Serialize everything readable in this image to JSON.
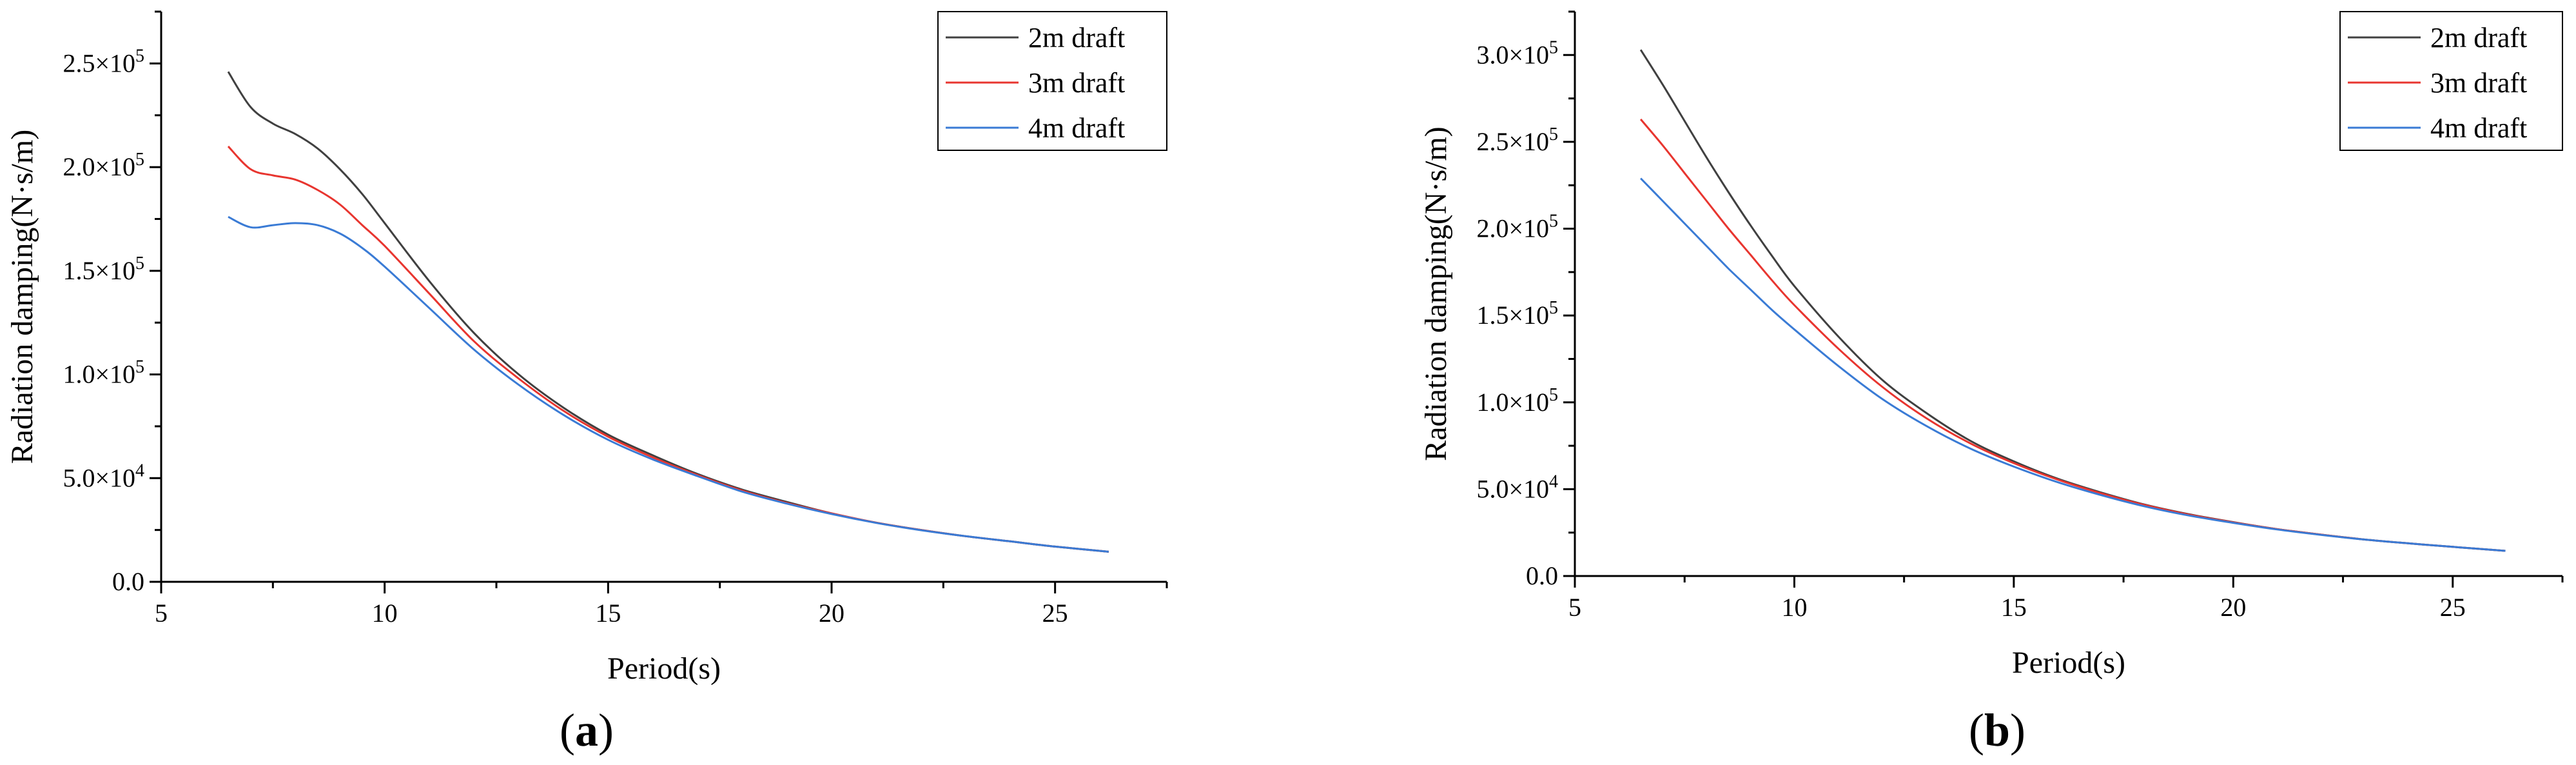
{
  "chart_data": [
    {
      "type": "line",
      "panel_label": "a",
      "xlabel": "Period(s)",
      "ylabel": "Radiation damping(N·s/m)",
      "xlim": [
        5,
        27.5
      ],
      "ylim": [
        0,
        275000
      ],
      "xticks": [
        5,
        10,
        15,
        20,
        25
      ],
      "xtick_labels": [
        "5",
        "10",
        "15",
        "20",
        "25"
      ],
      "yticks": [
        0,
        50000,
        100000,
        150000,
        200000,
        250000
      ],
      "ytick_labels": [
        {
          "mant": "0.0",
          "exp": ""
        },
        {
          "mant": "5.0×10",
          "exp": "4"
        },
        {
          "mant": "1.0×10",
          "exp": "5"
        },
        {
          "mant": "1.5×10",
          "exp": "5"
        },
        {
          "mant": "2.0×10",
          "exp": "5"
        },
        {
          "mant": "2.5×10",
          "exp": "5"
        }
      ],
      "legend": "top-right",
      "grid": false,
      "x": [
        6.5,
        7,
        7.5,
        8,
        8.5,
        9,
        9.5,
        10,
        11,
        12,
        13,
        14,
        15,
        16,
        17,
        18,
        19,
        20,
        21,
        22,
        23,
        24,
        25,
        26.2
      ],
      "series": [
        {
          "name": "2m draft",
          "color": "#404040",
          "values": [
            246000,
            229000,
            221000,
            216000,
            209000,
            199000,
            187000,
            173000,
            145000,
            120000,
            100000,
            84000,
            71000,
            61000,
            52000,
            44500,
            38500,
            33000,
            28500,
            25000,
            22000,
            19500,
            17000,
            14500
          ]
        },
        {
          "name": "3m draft",
          "color": "#e8352f",
          "values": [
            210000,
            199000,
            196000,
            194000,
            189000,
            182000,
            172000,
            162000,
            139000,
            116000,
            98000,
            82500,
            70000,
            60000,
            51500,
            44000,
            38000,
            33000,
            28500,
            25000,
            22000,
            19500,
            17000,
            14500
          ]
        },
        {
          "name": "4m draft",
          "color": "#3a7bd5",
          "values": [
            176000,
            171000,
            172000,
            173000,
            172000,
            168000,
            161000,
            152000,
            132000,
            112000,
            95000,
            80500,
            68500,
            59000,
            51000,
            43500,
            37700,
            32700,
            28400,
            24900,
            22000,
            19500,
            17000,
            14500
          ]
        }
      ]
    },
    {
      "type": "line",
      "panel_label": "b",
      "xlabel": "Period(s)",
      "ylabel": "Radiation damping(N·s/m)",
      "xlim": [
        5,
        27.5
      ],
      "ylim": [
        0,
        325000
      ],
      "xticks": [
        5,
        10,
        15,
        20,
        25
      ],
      "xtick_labels": [
        "5",
        "10",
        "15",
        "20",
        "25"
      ],
      "yticks": [
        0,
        50000,
        100000,
        150000,
        200000,
        250000,
        300000
      ],
      "ytick_labels": [
        {
          "mant": "0.0",
          "exp": ""
        },
        {
          "mant": "5.0×10",
          "exp": "4"
        },
        {
          "mant": "1.0×10",
          "exp": "5"
        },
        {
          "mant": "1.5×10",
          "exp": "5"
        },
        {
          "mant": "2.0×10",
          "exp": "5"
        },
        {
          "mant": "2.5×10",
          "exp": "5"
        },
        {
          "mant": "3.0×10",
          "exp": "5"
        }
      ],
      "legend": "top-right",
      "grid": false,
      "x": [
        6.5,
        7,
        7.5,
        8,
        8.5,
        9,
        9.5,
        10,
        11,
        12,
        13,
        14,
        15,
        16,
        17,
        18,
        19,
        20,
        21,
        22,
        23,
        24,
        25,
        26.2
      ],
      "series": [
        {
          "name": "2m draft",
          "color": "#404040",
          "values": [
            303000,
            283000,
            262000,
            241000,
            221000,
            202000,
            184000,
            167000,
            138000,
            113000,
            94000,
            78000,
            66000,
            56000,
            48000,
            41000,
            35500,
            31000,
            27000,
            23800,
            21000,
            18800,
            16800,
            14500
          ]
        },
        {
          "name": "3m draft",
          "color": "#e8352f",
          "values": [
            263000,
            248000,
            232000,
            216000,
            200000,
            185000,
            170000,
            156000,
            131000,
            109000,
            91000,
            76500,
            65000,
            55500,
            47500,
            40800,
            35300,
            30900,
            27000,
            23800,
            21000,
            18800,
            16800,
            14500
          ]
        },
        {
          "name": "4m draft",
          "color": "#3a7bd5",
          "values": [
            229000,
            216000,
            203000,
            190000,
            177000,
            165000,
            153000,
            142000,
            121000,
            102000,
            86500,
            73500,
            63000,
            54000,
            46500,
            40000,
            34800,
            30600,
            26800,
            23700,
            21000,
            18800,
            16800,
            14500
          ]
        }
      ]
    }
  ]
}
